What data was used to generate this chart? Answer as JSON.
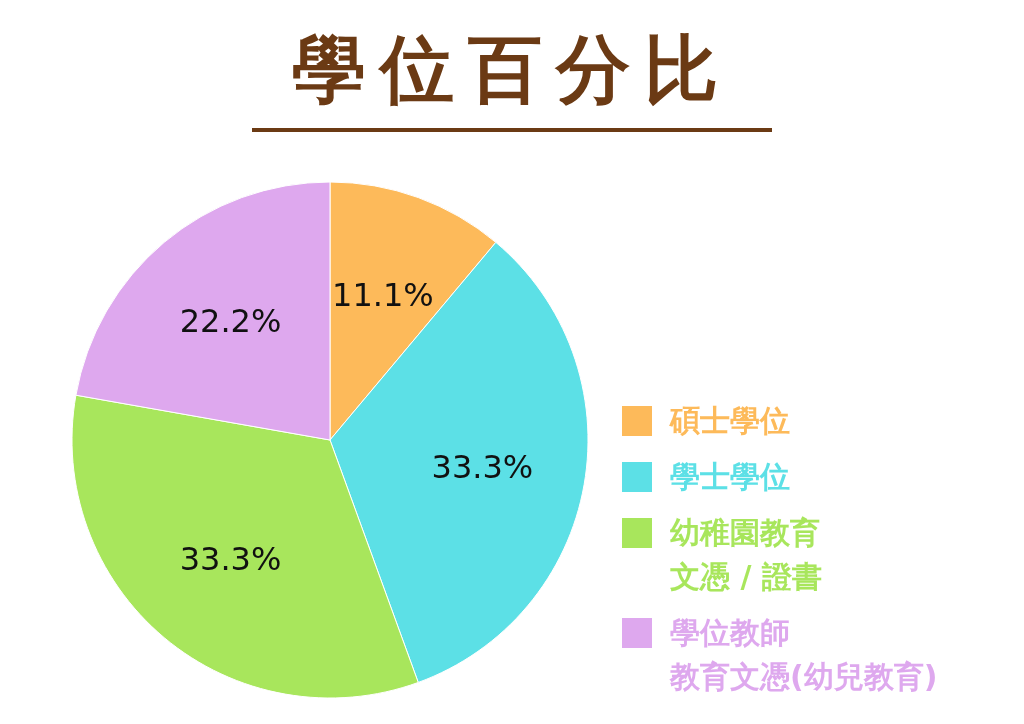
{
  "chart_data": {
    "type": "pie",
    "title": "學位百分比",
    "categories": [
      "碩士學位",
      "學士學位",
      "幼稚園教育文憑 / 證書",
      "學位教師教育文憑(幼兒教育)"
    ],
    "values": [
      11.1,
      33.3,
      33.3,
      22.2
    ],
    "value_labels": [
      "11.1%",
      "33.3%",
      "33.3%",
      "22.2%"
    ],
    "colors": [
      "#fdba5a",
      "#5ce0e6",
      "#a8e65c",
      "#dea8ee"
    ],
    "legend": "right"
  }
}
